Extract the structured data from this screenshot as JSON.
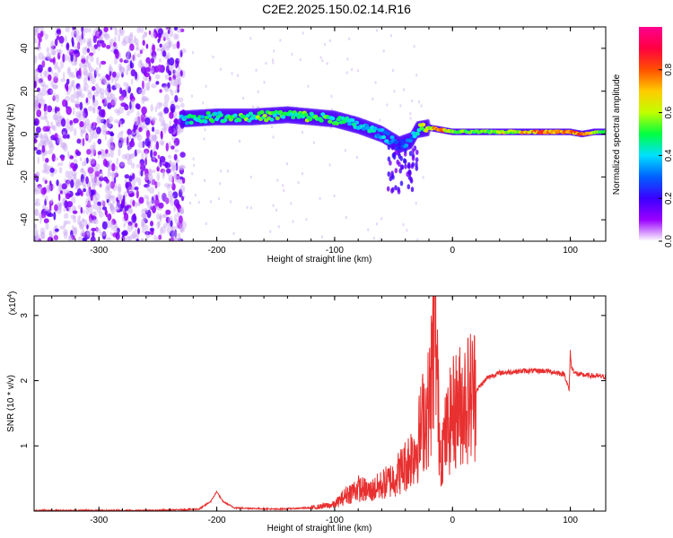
{
  "title": "C2E2.2025.150.02.14.R16",
  "chart_data": [
    {
      "type": "heatmap",
      "xlabel": "Height of straight line (km)",
      "ylabel": "Frequency (Hz)",
      "xlim": [
        -355,
        130
      ],
      "ylim": [
        -50,
        50
      ],
      "x_ticks": [
        -300,
        -200,
        -100,
        0,
        100
      ],
      "y_ticks": [
        -40,
        -20,
        0,
        20,
        40
      ],
      "colorbar": {
        "label": "Normalized spectral amplitude",
        "range": [
          0,
          1
        ],
        "ticks": [
          "0.0",
          "0.2",
          "0.4",
          "0.6",
          "0.8"
        ],
        "colors": [
          "#ffffff",
          "#9a00ff",
          "#3a00ff",
          "#0060ff",
          "#00e0ff",
          "#00ff40",
          "#c0ff00",
          "#ffcc00",
          "#ff5000",
          "#ff0040",
          "#ff0090"
        ]
      },
      "ridge": {
        "x": [
          -230,
          -200,
          -170,
          -140,
          -120,
          -100,
          -80,
          -60,
          -45,
          -35,
          -30,
          -20,
          -10,
          0,
          20,
          50,
          80,
          100,
          110,
          120,
          130
        ],
        "freq": [
          7,
          8,
          8,
          9,
          8,
          7,
          4,
          0,
          -5,
          -3,
          2,
          3,
          2,
          1,
          1,
          1,
          1,
          1,
          0,
          1,
          1
        ],
        "amp": [
          0.45,
          0.5,
          0.55,
          0.5,
          0.55,
          0.5,
          0.45,
          0.4,
          0.3,
          0.35,
          0.5,
          0.7,
          0.85,
          0.55,
          0.6,
          0.65,
          0.85,
          0.75,
          0.85,
          0.6,
          0.5
        ]
      }
    },
    {
      "type": "line",
      "xlabel": "Height of straight line (km)",
      "ylabel": "SNR (10 * v/v)",
      "y_multiplier": "(x10",
      "y_multiplier_exp": "4",
      "y_multiplier_close": ")",
      "xlim": [
        -355,
        130
      ],
      "ylim": [
        0,
        3.3
      ],
      "x_ticks": [
        -300,
        -200,
        -100,
        0,
        100
      ],
      "y_ticks": [
        1,
        2,
        3
      ],
      "color": "#e83030",
      "series": [
        {
          "x": [
            -355,
            -300,
            -250,
            -215,
            -205,
            -200,
            -195,
            -185,
            -150,
            -120,
            -100,
            -90,
            -80,
            -70,
            -60,
            -50,
            -45,
            -40,
            -35,
            -30,
            -25,
            -20,
            -17,
            -15,
            -12,
            -10,
            -5,
            0,
            10,
            20,
            30,
            40,
            60,
            80,
            95,
            99,
            100,
            101,
            105,
            115,
            130
          ],
          "y": [
            0.01,
            0.01,
            0.01,
            0.03,
            0.15,
            0.3,
            0.15,
            0.05,
            0.03,
            0.05,
            0.1,
            0.25,
            0.35,
            0.3,
            0.4,
            0.5,
            0.6,
            0.7,
            0.85,
            1.0,
            1.4,
            1.6,
            2.2,
            3.3,
            1.5,
            0.9,
            1.2,
            1.5,
            1.7,
            1.85,
            2.05,
            2.12,
            2.15,
            2.15,
            2.1,
            1.85,
            2.45,
            2.2,
            2.1,
            2.08,
            2.06
          ]
        }
      ]
    }
  ]
}
